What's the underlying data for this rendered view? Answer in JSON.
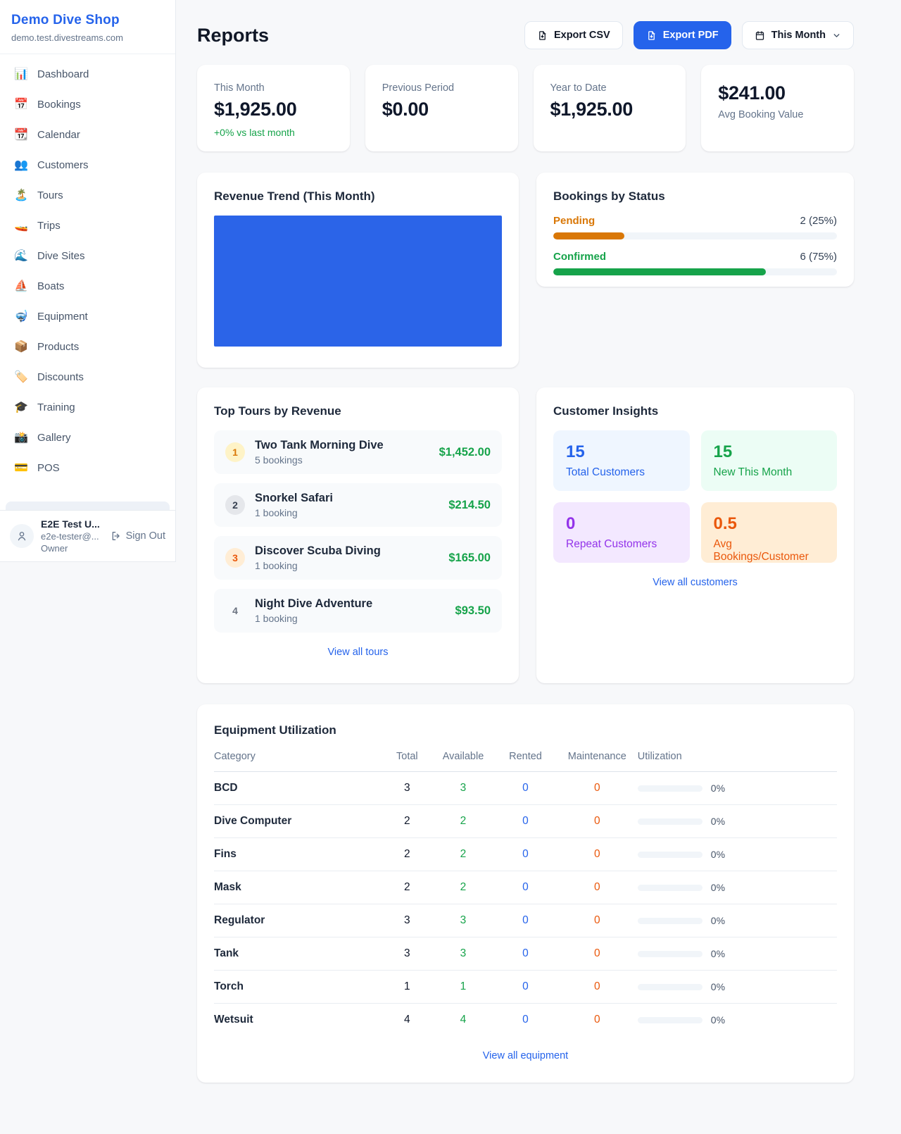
{
  "colors": {
    "primary": "#2563eb",
    "chart_fill": "#2b64e8",
    "green": "#16a34a",
    "amber": "#d97706",
    "orange": "#ea580c",
    "purple": "#9333ea"
  },
  "sidebar": {
    "title": "Demo Dive Shop",
    "domain": "demo.test.divestreams.com",
    "items": [
      {
        "icon": "📊",
        "label": "Dashboard"
      },
      {
        "icon": "📅",
        "label": "Bookings"
      },
      {
        "icon": "📆",
        "label": "Calendar"
      },
      {
        "icon": "👥",
        "label": "Customers"
      },
      {
        "icon": "🏝️",
        "label": "Tours"
      },
      {
        "icon": "🚤",
        "label": "Trips"
      },
      {
        "icon": "🌊",
        "label": "Dive Sites"
      },
      {
        "icon": "⛵",
        "label": "Boats"
      },
      {
        "icon": "🤿",
        "label": "Equipment"
      },
      {
        "icon": "📦",
        "label": "Products"
      },
      {
        "icon": "🏷️",
        "label": "Discounts"
      },
      {
        "icon": "🎓",
        "label": "Training"
      },
      {
        "icon": "📸",
        "label": "Gallery"
      },
      {
        "icon": "💳",
        "label": "POS"
      }
    ],
    "user": {
      "name": "E2E Test U...",
      "email": "e2e-tester@...",
      "role": "Owner",
      "signout": "Sign Out"
    }
  },
  "header": {
    "title": "Reports",
    "export_csv": "Export CSV",
    "export_pdf": "Export PDF",
    "period": "This Month"
  },
  "stats": [
    {
      "label": "This Month",
      "value": "$1,925.00",
      "delta": "+0% vs last month"
    },
    {
      "label": "Previous Period",
      "value": "$0.00"
    },
    {
      "label": "Year to Date",
      "value": "$1,925.00"
    },
    {
      "label": "Avg Booking Value",
      "value": "$241.00"
    }
  ],
  "revenue_trend": {
    "title": "Revenue Trend (This Month)",
    "fill_color": "#2b64e8"
  },
  "bookings_by_status": {
    "title": "Bookings by Status",
    "rows": [
      {
        "label": "Pending",
        "value": "2 (25%)",
        "pct": 25,
        "color": "#d97706"
      },
      {
        "label": "Confirmed",
        "value": "6 (75%)",
        "pct": 75,
        "color": "#16a34a"
      }
    ]
  },
  "top_tours": {
    "title": "Top Tours by Revenue",
    "rows": [
      {
        "rank": "1",
        "name": "Two Tank Morning Dive",
        "bookings": "5 bookings",
        "revenue": "$1,452.00",
        "badge_bg": "#fef3c7",
        "badge_fg": "#d97706"
      },
      {
        "rank": "2",
        "name": "Snorkel Safari",
        "bookings": "1 booking",
        "revenue": "$214.50",
        "badge_bg": "#e5e7eb",
        "badge_fg": "#374151"
      },
      {
        "rank": "3",
        "name": "Discover Scuba Diving",
        "bookings": "1 booking",
        "revenue": "$165.00",
        "badge_bg": "#ffedd5",
        "badge_fg": "#ea580c"
      },
      {
        "rank": "4",
        "name": "Night Dive Adventure",
        "bookings": "1 booking",
        "revenue": "$93.50",
        "badge_bg": "transparent",
        "badge_fg": "#6b7280"
      }
    ],
    "link": "View all tours"
  },
  "customer_insights": {
    "title": "Customer Insights",
    "tiles": [
      {
        "value": "15",
        "label": "Total Customers",
        "bg": "#eff6ff",
        "fg": "#2563eb"
      },
      {
        "value": "15",
        "label": "New This Month",
        "bg": "#ecfdf5",
        "fg": "#16a34a"
      },
      {
        "value": "0",
        "label": "Repeat Customers",
        "bg": "#f3e8ff",
        "fg": "#9333ea"
      },
      {
        "value": "0.5",
        "label": "Avg Bookings/Customer",
        "bg": "#ffedd5",
        "fg": "#ea580c"
      }
    ],
    "link": "View all customers"
  },
  "equipment": {
    "title": "Equipment Utilization",
    "columns": [
      "Category",
      "Total",
      "Available",
      "Rented",
      "Maintenance",
      "Utilization"
    ],
    "colors": {
      "available": "#16a34a",
      "rented": "#2563eb",
      "maintenance": "#ea580c"
    },
    "rows": [
      {
        "category": "BCD",
        "total": "3",
        "available": "3",
        "rented": "0",
        "maintenance": "0",
        "utilization_pct": 0,
        "utilization": "0%"
      },
      {
        "category": "Dive Computer",
        "total": "2",
        "available": "2",
        "rented": "0",
        "maintenance": "0",
        "utilization_pct": 0,
        "utilization": "0%"
      },
      {
        "category": "Fins",
        "total": "2",
        "available": "2",
        "rented": "0",
        "maintenance": "0",
        "utilization_pct": 0,
        "utilization": "0%"
      },
      {
        "category": "Mask",
        "total": "2",
        "available": "2",
        "rented": "0",
        "maintenance": "0",
        "utilization_pct": 0,
        "utilization": "0%"
      },
      {
        "category": "Regulator",
        "total": "3",
        "available": "3",
        "rented": "0",
        "maintenance": "0",
        "utilization_pct": 0,
        "utilization": "0%"
      },
      {
        "category": "Tank",
        "total": "3",
        "available": "3",
        "rented": "0",
        "maintenance": "0",
        "utilization_pct": 0,
        "utilization": "0%"
      },
      {
        "category": "Torch",
        "total": "1",
        "available": "1",
        "rented": "0",
        "maintenance": "0",
        "utilization_pct": 0,
        "utilization": "0%"
      },
      {
        "category": "Wetsuit",
        "total": "4",
        "available": "4",
        "rented": "0",
        "maintenance": "0",
        "utilization_pct": 0,
        "utilization": "0%"
      }
    ],
    "link": "View all equipment"
  },
  "chart_data": [
    {
      "type": "area",
      "title": "Revenue Trend (This Month)",
      "description": "Chart rendered as one solid blue filled block; no axes, ticks, gridlines or data labels visible",
      "fill_color": "#2b64e8"
    },
    {
      "type": "bar",
      "title": "Bookings by Status",
      "categories": [
        "Pending",
        "Confirmed"
      ],
      "values": [
        2,
        6
      ],
      "percentages": [
        25,
        75
      ],
      "colors": [
        "#d97706",
        "#16a34a"
      ],
      "orientation": "horizontal"
    }
  ]
}
